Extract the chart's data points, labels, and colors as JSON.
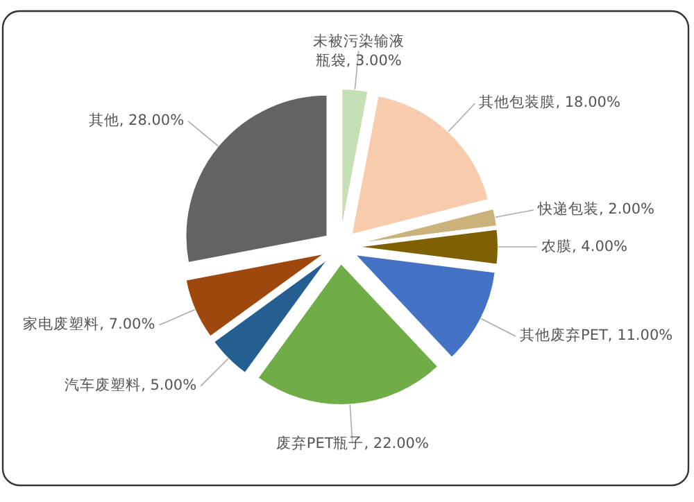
{
  "chart_data": {
    "type": "pie",
    "categories": [
      "未被污染输液瓶袋",
      "其他包装膜",
      "快递包装",
      "农膜",
      "其他废弃PET",
      "废弃PET瓶子",
      "汽车废塑料",
      "家电废塑料",
      "其他"
    ],
    "values": [
      3,
      18,
      2,
      4,
      11,
      22,
      5,
      7,
      28
    ],
    "value_labels": [
      "3.00%",
      "18.00%",
      "2.00%",
      "4.00%",
      "11.00%",
      "22.00%",
      "5.00%",
      "7.00%",
      "28.00%"
    ],
    "colors": [
      "#c5e0b4",
      "#f8cbad",
      "#c9b27c",
      "#7f6000",
      "#4472c4",
      "#70ad47",
      "#255e91",
      "#9e480e",
      "#636363"
    ]
  }
}
